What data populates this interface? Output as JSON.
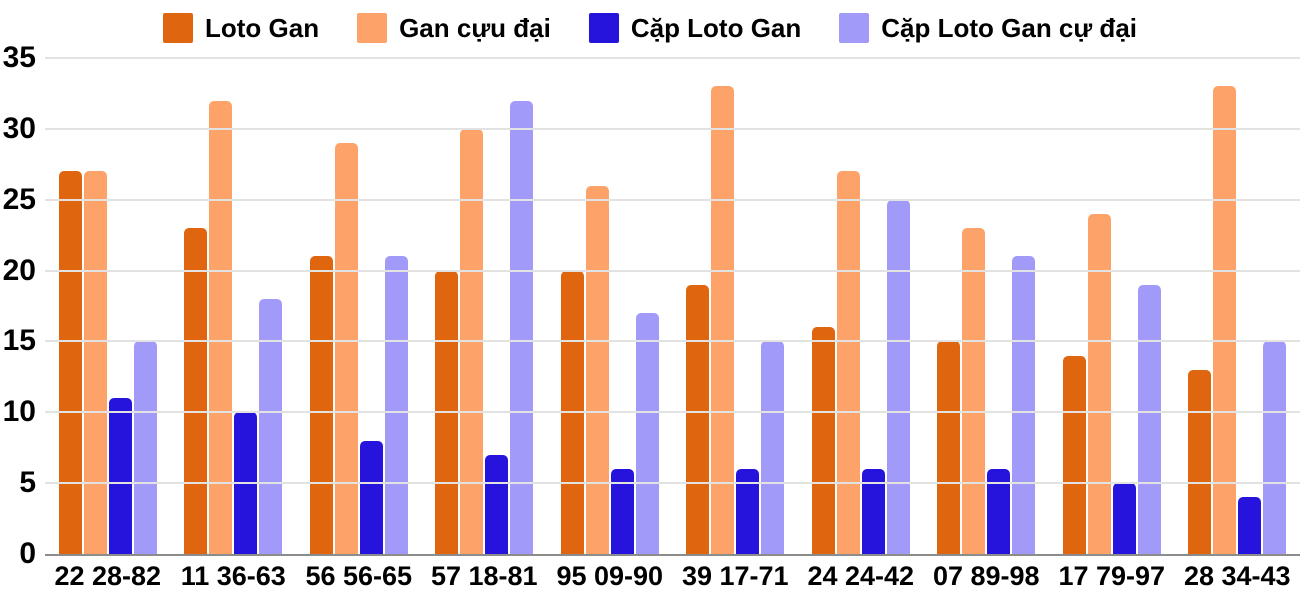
{
  "chart_data": {
    "type": "bar",
    "title": "",
    "xlabel": "",
    "ylabel": "",
    "ylim": [
      0,
      35
    ],
    "yticks": [
      0,
      5,
      10,
      15,
      20,
      25,
      30,
      35
    ],
    "grid": true,
    "legend_position": "top",
    "background": "#ffffff",
    "grid_color": "#e2e2e2",
    "baseline_color": "#8c8c8c",
    "categories": [
      "22 28-82",
      "11 36-63",
      "56 56-65",
      "57 18-81",
      "95 09-90",
      "39 17-71",
      "24 24-42",
      "07 89-98",
      "17 79-97",
      "28 34-43"
    ],
    "series": [
      {
        "name": "Loto Gan",
        "color": "#E0650F",
        "values": [
          27,
          23,
          21,
          20,
          20,
          19,
          16,
          15,
          14,
          13
        ]
      },
      {
        "name": "Gan cựu đại",
        "color": "#FDA369",
        "values": [
          27,
          32,
          29,
          30,
          26,
          33,
          27,
          23,
          24,
          33
        ]
      },
      {
        "name": "Cặp Loto Gan",
        "color": "#2614DC",
        "values": [
          11,
          10,
          8,
          7,
          6,
          6,
          6,
          6,
          5,
          4
        ]
      },
      {
        "name": "Cặp Loto Gan cự đại",
        "color": "#A29AF8",
        "values": [
          15,
          18,
          21,
          32,
          17,
          15,
          25,
          21,
          19,
          15
        ]
      }
    ]
  }
}
